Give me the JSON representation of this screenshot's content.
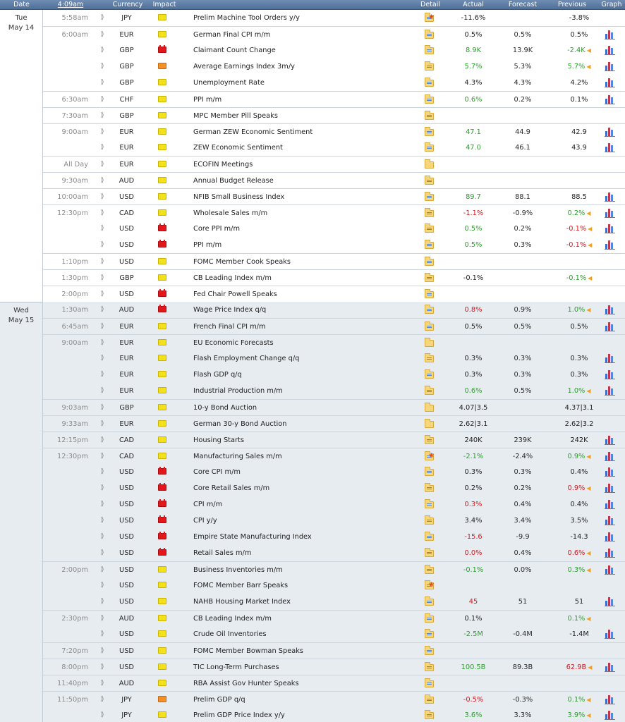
{
  "header": {
    "date": "Date",
    "clock": "4:09am",
    "currency": "Currency",
    "impact": "Impact",
    "detail": "Detail",
    "actual": "Actual",
    "forecast": "Forecast",
    "previous": "Previous",
    "graph": "Graph"
  },
  "days": [
    {
      "label1": "Tue",
      "label2": "May 14",
      "shade": "tue",
      "rows": [
        {
          "time": "5:58am",
          "cur": "JPY",
          "imp": "low",
          "event": "Prelim Machine Tool Orders y/y",
          "star": true,
          "actual": "-11.6%",
          "ac": "neu",
          "forecast": "",
          "previous": "-3.8%",
          "pc": "neu",
          "rev": false,
          "graph": false
        },
        {
          "time": "6:00am",
          "cur": "EUR",
          "imp": "low",
          "event": "German Final CPI m/m",
          "actual": "0.5%",
          "ac": "neu",
          "forecast": "0.5%",
          "previous": "0.5%",
          "pc": "neu",
          "graph": true
        },
        {
          "time": "",
          "cur": "GBP",
          "imp": "high",
          "event": "Claimant Count Change",
          "actual": "8.9K",
          "ac": "pos",
          "forecast": "13.9K",
          "previous": "-2.4K",
          "pc": "pos",
          "rev": true,
          "graph": true
        },
        {
          "time": "",
          "cur": "GBP",
          "imp": "med",
          "event": "Average Earnings Index 3m/y",
          "actual": "5.7%",
          "ac": "pos",
          "forecast": "5.3%",
          "previous": "5.7%",
          "pc": "pos",
          "rev": true,
          "graph": true
        },
        {
          "time": "",
          "cur": "GBP",
          "imp": "low",
          "event": "Unemployment Rate",
          "actual": "4.3%",
          "ac": "neu",
          "forecast": "4.3%",
          "previous": "4.2%",
          "pc": "neu",
          "graph": true
        },
        {
          "time": "6:30am",
          "cur": "CHF",
          "imp": "low",
          "event": "PPI m/m",
          "actual": "0.6%",
          "ac": "pos",
          "forecast": "0.2%",
          "previous": "0.1%",
          "pc": "neu",
          "graph": true
        },
        {
          "time": "7:30am",
          "cur": "GBP",
          "imp": "low",
          "event": "MPC Member Pill Speaks",
          "actual": "",
          "forecast": "",
          "previous": "",
          "graph": false
        },
        {
          "time": "9:00am",
          "cur": "EUR",
          "imp": "low",
          "event": "German ZEW Economic Sentiment",
          "actual": "47.1",
          "ac": "pos",
          "forecast": "44.9",
          "previous": "42.9",
          "pc": "neu",
          "graph": true
        },
        {
          "time": "",
          "cur": "EUR",
          "imp": "low",
          "event": "ZEW Economic Sentiment",
          "actual": "47.0",
          "ac": "pos",
          "forecast": "46.1",
          "previous": "43.9",
          "pc": "neu",
          "graph": true
        },
        {
          "time": "All Day",
          "cur": "EUR",
          "imp": "low",
          "event": "ECOFIN Meetings",
          "nodata": true,
          "actual": "",
          "forecast": "",
          "previous": "",
          "graph": false
        },
        {
          "time": "9:30am",
          "cur": "AUD",
          "imp": "low",
          "event": "Annual Budget Release",
          "actual": "",
          "forecast": "",
          "previous": "",
          "graph": false
        },
        {
          "time": "10:00am",
          "cur": "USD",
          "imp": "low",
          "event": "NFIB Small Business Index",
          "actual": "89.7",
          "ac": "pos",
          "forecast": "88.1",
          "previous": "88.5",
          "pc": "neu",
          "graph": true
        },
        {
          "time": "12:30pm",
          "cur": "CAD",
          "imp": "low",
          "event": "Wholesale Sales m/m",
          "actual": "-1.1%",
          "ac": "neg",
          "forecast": "-0.9%",
          "previous": "0.2%",
          "pc": "pos",
          "rev": true,
          "graph": true
        },
        {
          "time": "",
          "cur": "USD",
          "imp": "high",
          "event": "Core PPI m/m",
          "actual": "0.5%",
          "ac": "pos",
          "forecast": "0.2%",
          "previous": "-0.1%",
          "pc": "neg",
          "rev": true,
          "graph": true
        },
        {
          "time": "",
          "cur": "USD",
          "imp": "high",
          "event": "PPI m/m",
          "actual": "0.5%",
          "ac": "pos",
          "forecast": "0.3%",
          "previous": "-0.1%",
          "pc": "neg",
          "rev": true,
          "graph": true
        },
        {
          "time": "1:10pm",
          "cur": "USD",
          "imp": "low",
          "event": "FOMC Member Cook Speaks",
          "actual": "",
          "forecast": "",
          "previous": "",
          "graph": false
        },
        {
          "time": "1:30pm",
          "cur": "GBP",
          "imp": "low",
          "event": "CB Leading Index m/m",
          "actual": "-0.1%",
          "ac": "neu",
          "forecast": "",
          "previous": "-0.1%",
          "pc": "pos",
          "rev": true,
          "graph": false
        },
        {
          "time": "2:00pm",
          "cur": "USD",
          "imp": "high",
          "event": "Fed Chair Powell Speaks",
          "actual": "",
          "forecast": "",
          "previous": "",
          "graph": false
        }
      ]
    },
    {
      "label1": "Wed",
      "label2": "May 15",
      "shade": "wed",
      "rows": [
        {
          "time": "1:30am",
          "cur": "AUD",
          "imp": "high",
          "event": "Wage Price Index q/q",
          "actual": "0.8%",
          "ac": "neg",
          "forecast": "0.9%",
          "previous": "1.0%",
          "pc": "pos",
          "rev": true,
          "graph": true
        },
        {
          "time": "6:45am",
          "cur": "EUR",
          "imp": "low",
          "event": "French Final CPI m/m",
          "actual": "0.5%",
          "ac": "neu",
          "forecast": "0.5%",
          "previous": "0.5%",
          "pc": "neu",
          "graph": true
        },
        {
          "time": "9:00am",
          "cur": "EUR",
          "imp": "low",
          "event": "EU Economic Forecasts",
          "nodata": true,
          "actual": "",
          "forecast": "",
          "previous": "",
          "graph": false
        },
        {
          "time": "",
          "cur": "EUR",
          "imp": "low",
          "event": "Flash Employment Change q/q",
          "actual": "0.3%",
          "ac": "neu",
          "forecast": "0.3%",
          "previous": "0.3%",
          "pc": "neu",
          "graph": true
        },
        {
          "time": "",
          "cur": "EUR",
          "imp": "low",
          "event": "Flash GDP q/q",
          "actual": "0.3%",
          "ac": "neu",
          "forecast": "0.3%",
          "previous": "0.3%",
          "pc": "neu",
          "graph": true
        },
        {
          "time": "",
          "cur": "EUR",
          "imp": "low",
          "event": "Industrial Production m/m",
          "actual": "0.6%",
          "ac": "pos",
          "forecast": "0.5%",
          "previous": "1.0%",
          "pc": "pos",
          "rev": true,
          "graph": true
        },
        {
          "time": "9:03am",
          "cur": "GBP",
          "imp": "low",
          "event": "10-y Bond Auction",
          "nodata": true,
          "actual": "4.07|3.5",
          "ac": "neu",
          "forecast": "",
          "previous": "4.37|3.1",
          "pc": "neu",
          "graph": false
        },
        {
          "time": "9:33am",
          "cur": "EUR",
          "imp": "low",
          "event": "German 30-y Bond Auction",
          "nodata": true,
          "actual": "2.62|3.1",
          "ac": "neu",
          "forecast": "",
          "previous": "2.62|3.2",
          "pc": "neu",
          "graph": false
        },
        {
          "time": "12:15pm",
          "cur": "CAD",
          "imp": "low",
          "event": "Housing Starts",
          "actual": "240K",
          "ac": "neu",
          "forecast": "239K",
          "previous": "242K",
          "pc": "neu",
          "graph": true
        },
        {
          "time": "12:30pm",
          "cur": "CAD",
          "imp": "low",
          "event": "Manufacturing Sales m/m",
          "star": true,
          "actual": "-2.1%",
          "ac": "pos",
          "forecast": "-2.4%",
          "previous": "0.9%",
          "pc": "pos",
          "rev": true,
          "graph": true
        },
        {
          "time": "",
          "cur": "USD",
          "imp": "high",
          "event": "Core CPI m/m",
          "actual": "0.3%",
          "ac": "neu",
          "forecast": "0.3%",
          "previous": "0.4%",
          "pc": "neu",
          "graph": true
        },
        {
          "time": "",
          "cur": "USD",
          "imp": "high",
          "event": "Core Retail Sales m/m",
          "actual": "0.2%",
          "ac": "neu",
          "forecast": "0.2%",
          "previous": "0.9%",
          "pc": "neg",
          "rev": true,
          "graph": true
        },
        {
          "time": "",
          "cur": "USD",
          "imp": "high",
          "event": "CPI m/m",
          "actual": "0.3%",
          "ac": "neg",
          "forecast": "0.4%",
          "previous": "0.4%",
          "pc": "neu",
          "graph": true
        },
        {
          "time": "",
          "cur": "USD",
          "imp": "high",
          "event": "CPI y/y",
          "actual": "3.4%",
          "ac": "neu",
          "forecast": "3.4%",
          "previous": "3.5%",
          "pc": "neu",
          "graph": true
        },
        {
          "time": "",
          "cur": "USD",
          "imp": "high",
          "event": "Empire State Manufacturing Index",
          "actual": "-15.6",
          "ac": "neg",
          "forecast": "-9.9",
          "previous": "-14.3",
          "pc": "neu",
          "graph": true
        },
        {
          "time": "",
          "cur": "USD",
          "imp": "high",
          "event": "Retail Sales m/m",
          "actual": "0.0%",
          "ac": "neg",
          "forecast": "0.4%",
          "previous": "0.6%",
          "pc": "neg",
          "rev": true,
          "graph": true
        },
        {
          "time": "2:00pm",
          "cur": "USD",
          "imp": "low",
          "event": "Business Inventories m/m",
          "actual": "-0.1%",
          "ac": "pos",
          "forecast": "0.0%",
          "previous": "0.3%",
          "pc": "pos",
          "rev": true,
          "graph": true
        },
        {
          "time": "",
          "cur": "USD",
          "imp": "low",
          "event": "FOMC Member Barr Speaks",
          "star": true,
          "actual": "",
          "forecast": "",
          "previous": "",
          "graph": false
        },
        {
          "time": "",
          "cur": "USD",
          "imp": "low",
          "event": "NAHB Housing Market Index",
          "actual": "45",
          "ac": "neg",
          "forecast": "51",
          "previous": "51",
          "pc": "neu",
          "graph": true
        },
        {
          "time": "2:30pm",
          "cur": "AUD",
          "imp": "low",
          "event": "CB Leading Index m/m",
          "actual": "0.1%",
          "ac": "neu",
          "forecast": "",
          "previous": "0.1%",
          "pc": "pos",
          "rev": true,
          "graph": false
        },
        {
          "time": "",
          "cur": "USD",
          "imp": "low",
          "event": "Crude Oil Inventories",
          "actual": "-2.5M",
          "ac": "pos",
          "forecast": "-0.4M",
          "previous": "-1.4M",
          "pc": "neu",
          "graph": true
        },
        {
          "time": "7:20pm",
          "cur": "USD",
          "imp": "low",
          "event": "FOMC Member Bowman Speaks",
          "actual": "",
          "forecast": "",
          "previous": "",
          "graph": false
        },
        {
          "time": "8:00pm",
          "cur": "USD",
          "imp": "low",
          "event": "TIC Long-Term Purchases",
          "actual": "100.5B",
          "ac": "pos",
          "forecast": "89.3B",
          "previous": "62.9B",
          "pc": "neg",
          "rev": true,
          "graph": true
        },
        {
          "time": "11:40pm",
          "cur": "AUD",
          "imp": "low",
          "event": "RBA Assist Gov Hunter Speaks",
          "actual": "",
          "forecast": "",
          "previous": "",
          "graph": false
        },
        {
          "time": "11:50pm",
          "cur": "JPY",
          "imp": "med",
          "event": "Prelim GDP q/q",
          "actual": "-0.5%",
          "ac": "neg",
          "forecast": "-0.3%",
          "previous": "0.1%",
          "pc": "pos",
          "rev": true,
          "graph": true
        },
        {
          "time": "",
          "cur": "JPY",
          "imp": "low",
          "event": "Prelim GDP Price Index y/y",
          "actual": "3.6%",
          "ac": "pos",
          "forecast": "3.3%",
          "previous": "3.9%",
          "pc": "pos",
          "rev": true,
          "graph": true
        }
      ]
    }
  ]
}
